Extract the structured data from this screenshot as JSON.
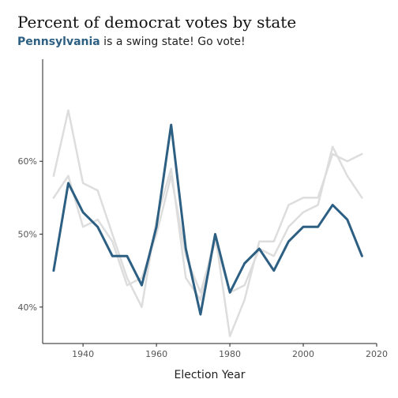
{
  "chart_data": {
    "type": "line",
    "title": "Percent of democrat votes by state",
    "subtitle_highlight": "Pennsylvania",
    "subtitle_rest": " is a swing state! Go vote!",
    "xlabel": "Election Year",
    "ylabel": "",
    "xlim": [
      1929,
      2020
    ],
    "ylim": [
      35,
      74
    ],
    "x_ticks": [
      1940,
      1960,
      1980,
      2000,
      2020
    ],
    "y_ticks": [
      40,
      50,
      60
    ],
    "y_tick_labels": [
      "40%",
      "50%",
      "60%"
    ],
    "x": [
      1932,
      1936,
      1940,
      1944,
      1948,
      1952,
      1956,
      1960,
      1964,
      1968,
      1972,
      1976,
      1980,
      1984,
      1988,
      1992,
      1996,
      2000,
      2004,
      2008,
      2012,
      2016
    ],
    "highlight_color": "#2d5f83",
    "background_color": "#dddddd",
    "series": [
      {
        "role": "background",
        "values": [
          58,
          67,
          57,
          56,
          50,
          44,
          40,
          52,
          59,
          44,
          41,
          50,
          36,
          41,
          49,
          49,
          54,
          55,
          55,
          61,
          60,
          61
        ]
      },
      {
        "role": "background",
        "values": [
          55,
          58,
          51,
          52,
          49,
          43,
          44,
          50,
          58,
          47,
          42,
          49,
          42,
          43,
          48,
          47,
          51,
          53,
          54,
          62,
          58,
          55
        ]
      },
      {
        "name": "Pennsylvania",
        "role": "highlight",
        "values": [
          45,
          57,
          53,
          51,
          47,
          47,
          43,
          51,
          65,
          48,
          39,
          50,
          42,
          46,
          48,
          45,
          49,
          51,
          51,
          54,
          52,
          47
        ]
      }
    ]
  }
}
